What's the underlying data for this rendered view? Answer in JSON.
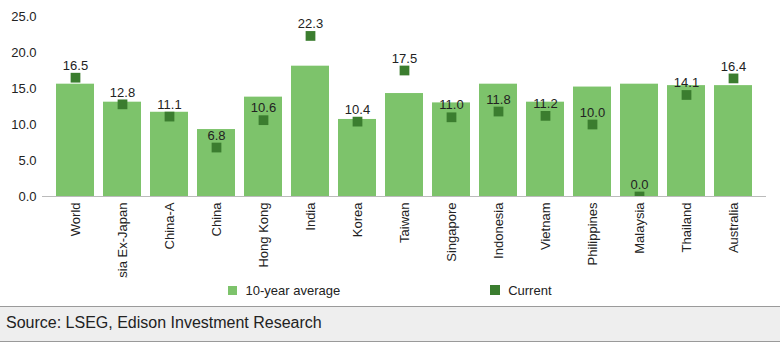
{
  "chart_data": {
    "type": "bar",
    "source": "Source: LSEG, Edison Investment Research",
    "categories": [
      "World",
      "Asia Ex-Japan",
      "China-A",
      "China",
      "Hong Kong",
      "India",
      "Korea",
      "Taiwan",
      "Singapore",
      "Indonesia",
      "Vietnam",
      "Philippines",
      "Malaysia",
      "Thailand",
      "Australia"
    ],
    "series": [
      {
        "name": "10-year average",
        "type": "bar",
        "color": "#7dc36b",
        "values": [
          15.6,
          13.1,
          11.7,
          9.3,
          13.8,
          18.1,
          10.7,
          14.3,
          13.0,
          15.6,
          13.1,
          15.2,
          15.6,
          15.4,
          15.4
        ]
      },
      {
        "name": "Current",
        "type": "scatter",
        "marker": "square",
        "color": "#3b7d2f",
        "data_labels": true,
        "values": [
          16.5,
          12.8,
          11.1,
          6.8,
          10.6,
          22.3,
          10.4,
          17.5,
          11.0,
          11.8,
          11.2,
          10.0,
          0.0,
          14.1,
          16.4
        ],
        "value_labels": [
          "16.5",
          "12.8",
          "11.1",
          "6.8",
          "10.6",
          "22.3",
          "10.4",
          "17.5",
          "11.0",
          "11.8",
          "11.2",
          "10.0",
          "0.0",
          "14.1",
          "16.4"
        ]
      }
    ],
    "ylim": [
      0,
      25
    ],
    "yticks": [
      {
        "value": 0,
        "label": "0.0"
      },
      {
        "value": 5,
        "label": "5.0"
      },
      {
        "value": 10,
        "label": "10.0"
      },
      {
        "value": 15,
        "label": "15.0"
      },
      {
        "value": 20,
        "label": "20.0"
      },
      {
        "value": 25,
        "label": "25.0"
      }
    ],
    "grid": false,
    "legend": "bottom"
  }
}
